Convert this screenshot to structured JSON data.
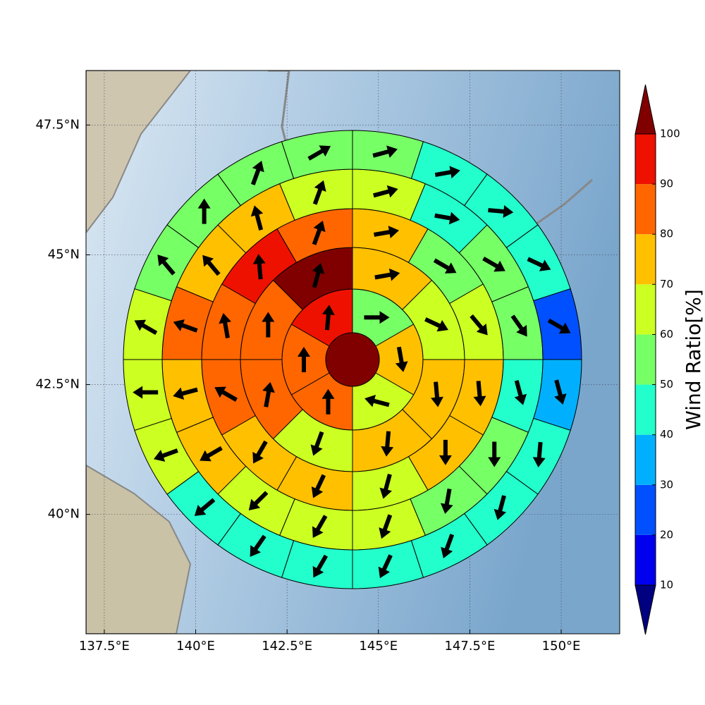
{
  "chart_data": {
    "type": "sector_map",
    "xlim": [
      137.0,
      151.6
    ],
    "ylim": [
      37.7,
      48.55
    ],
    "xticks": [
      {
        "value": 137.5,
        "label": "137.5°E"
      },
      {
        "value": 140,
        "label": "140°E"
      },
      {
        "value": 142.5,
        "label": "142.5°E"
      },
      {
        "value": 145,
        "label": "145°E"
      },
      {
        "value": 147.5,
        "label": "147.5°E"
      },
      {
        "value": 150,
        "label": "150°E"
      }
    ],
    "yticks": [
      {
        "value": 40,
        "label": "40°N"
      },
      {
        "value": 42.5,
        "label": "42.5°N"
      },
      {
        "value": 45,
        "label": "45°N"
      },
      {
        "value": 47.5,
        "label": "47.5°N"
      }
    ],
    "grid": true,
    "center_value": 100,
    "rings": [
      {
        "values": [
          55,
          75,
          65,
          80,
          80,
          90
        ],
        "directions": [
          90,
          170,
          285,
          0,
          0,
          5
        ]
      },
      {
        "values": [
          75,
          65,
          75,
          75,
          65,
          85,
          85,
          100
        ],
        "directions": [
          80,
          115,
          175,
          185,
          200,
          10,
          0,
          15
        ]
      },
      {
        "values": [
          75,
          55,
          65,
          75,
          75,
          65,
          75,
          75,
          85,
          85,
          95,
          85
        ],
        "directions": [
          80,
          120,
          140,
          175,
          180,
          195,
          205,
          210,
          300,
          350,
          355,
          20
        ]
      },
      {
        "values": [
          65,
          45,
          55,
          55,
          45,
          55,
          55,
          65,
          65,
          65,
          75,
          75,
          85,
          75,
          75,
          65
        ],
        "directions": [
          75,
          100,
          120,
          145,
          165,
          180,
          190,
          200,
          210,
          225,
          240,
          255,
          290,
          320,
          345,
          20
        ]
      },
      {
        "values": [
          55,
          45,
          45,
          45,
          25,
          35,
          45,
          45,
          45,
          45,
          45,
          45,
          45,
          65,
          65,
          65,
          55,
          55,
          55,
          55
        ],
        "directions": [
          75,
          80,
          95,
          115,
          120,
          165,
          185,
          195,
          200,
          205,
          210,
          215,
          230,
          250,
          270,
          300,
          320,
          0,
          20,
          60
        ]
      }
    ],
    "colorbar": {
      "label": "Wind Ratio[%]",
      "ticks": [
        10,
        20,
        30,
        40,
        50,
        60,
        70,
        80,
        90,
        100
      ],
      "colors": [
        "#0000ee",
        "#0050ff",
        "#00b0ff",
        "#22ffcc",
        "#77ff66",
        "#ccff22",
        "#ffc000",
        "#ff6600",
        "#ee1100"
      ],
      "under_color": "#000080",
      "over_color": "#800000"
    }
  }
}
